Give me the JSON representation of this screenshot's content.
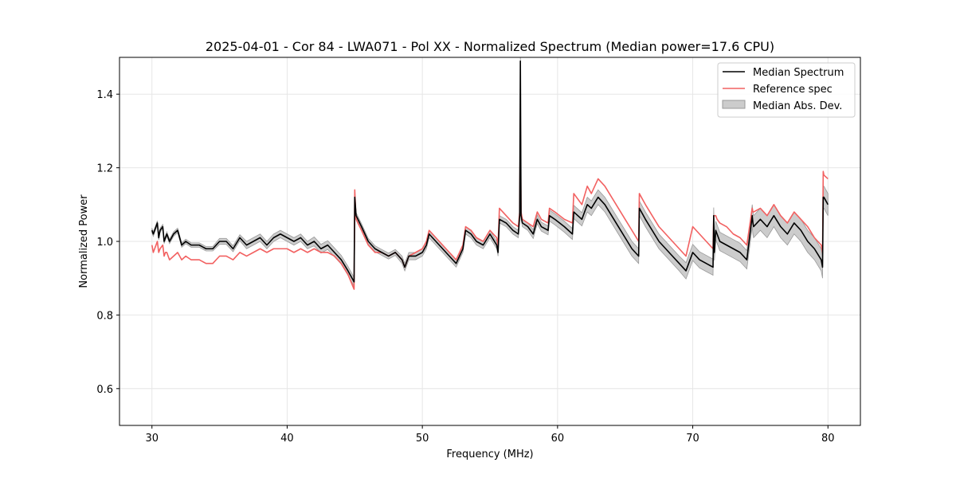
{
  "chart_data": {
    "type": "line",
    "title": "2025-04-01 - Cor 84 - LWA071 - Pol XX - Normalized Spectrum (Median power=17.6 CPU)",
    "xlabel": "Frequency (MHz)",
    "ylabel": "Normalized Power",
    "xlim": [
      27.6,
      82.4
    ],
    "ylim": [
      0.5,
      1.5
    ],
    "xticks": [
      30,
      40,
      50,
      60,
      70,
      80
    ],
    "yticks": [
      0.6,
      0.8,
      1.0,
      1.2,
      1.4
    ],
    "grid": true,
    "legend_position": "top-right",
    "colors": {
      "median": "#000000",
      "reference": "#f26161",
      "mad_fill": "#cccccc",
      "mad_edge": "#999999"
    },
    "series": [
      {
        "name": "Median Spectrum",
        "x": [
          30.0,
          30.1,
          30.3,
          30.4,
          30.5,
          30.6,
          30.8,
          30.9,
          31.0,
          31.1,
          31.3,
          31.6,
          31.9,
          32.2,
          32.5,
          32.9,
          33.1,
          33.5,
          34.0,
          34.5,
          35.0,
          35.5,
          36.0,
          36.5,
          37.0,
          37.5,
          38.0,
          38.5,
          39.0,
          39.5,
          40.0,
          40.5,
          41.0,
          41.5,
          42.0,
          42.5,
          43.0,
          43.5,
          44.0,
          44.5,
          44.95,
          45.0,
          45.1,
          45.5,
          46.0,
          46.5,
          47.0,
          47.5,
          48.0,
          48.5,
          48.7,
          49.0,
          49.5,
          50.0,
          50.3,
          50.5,
          51.0,
          51.5,
          52.0,
          52.5,
          53.0,
          53.2,
          53.6,
          54.0,
          54.5,
          55.0,
          55.5,
          55.6,
          55.7,
          56.2,
          56.7,
          57.1,
          57.2,
          57.25,
          57.3,
          57.4,
          57.8,
          58.2,
          58.5,
          58.8,
          59.3,
          59.4,
          59.8,
          60.5,
          61.1,
          61.2,
          61.8,
          62.2,
          62.5,
          63.0,
          63.5,
          64.0,
          64.5,
          65.0,
          65.5,
          66.0,
          66.05,
          66.5,
          67.0,
          67.5,
          68.0,
          68.5,
          69.0,
          69.5,
          70.0,
          70.5,
          71.0,
          71.5,
          71.55,
          71.6,
          71.7,
          71.8,
          72.0,
          72.5,
          73.0,
          73.5,
          74.0,
          74.4,
          74.45,
          74.5,
          75.0,
          75.5,
          76.0,
          76.5,
          77.0,
          77.5,
          78.0,
          78.5,
          79.0,
          79.5,
          79.6,
          79.65,
          79.7,
          80.0
        ],
        "values": [
          1.03,
          1.02,
          1.04,
          1.05,
          1.01,
          1.03,
          1.04,
          1.0,
          1.01,
          1.02,
          1.0,
          1.02,
          1.03,
          0.99,
          1.0,
          0.99,
          0.99,
          0.99,
          0.98,
          0.98,
          1.0,
          1.0,
          0.98,
          1.01,
          0.99,
          1.0,
          1.01,
          0.99,
          1.01,
          1.02,
          1.01,
          1.0,
          1.01,
          0.99,
          1.0,
          0.98,
          0.99,
          0.97,
          0.95,
          0.92,
          0.89,
          1.12,
          1.07,
          1.04,
          1.0,
          0.98,
          0.97,
          0.96,
          0.97,
          0.95,
          0.93,
          0.96,
          0.96,
          0.97,
          0.99,
          1.02,
          1.0,
          0.98,
          0.96,
          0.94,
          0.98,
          1.03,
          1.02,
          1.0,
          0.99,
          1.02,
          0.99,
          0.97,
          1.06,
          1.05,
          1.03,
          1.02,
          1.07,
          1.49,
          1.07,
          1.05,
          1.04,
          1.02,
          1.06,
          1.04,
          1.03,
          1.07,
          1.06,
          1.04,
          1.02,
          1.08,
          1.06,
          1.1,
          1.09,
          1.12,
          1.1,
          1.07,
          1.04,
          1.01,
          0.98,
          0.96,
          1.09,
          1.06,
          1.03,
          1.0,
          0.98,
          0.96,
          0.94,
          0.92,
          0.97,
          0.95,
          0.94,
          0.93,
          1.07,
          0.97,
          1.03,
          1.02,
          1.0,
          0.99,
          0.98,
          0.97,
          0.95,
          1.07,
          1.05,
          1.04,
          1.06,
          1.04,
          1.07,
          1.04,
          1.02,
          1.05,
          1.03,
          1.0,
          0.98,
          0.95,
          0.93,
          1.12,
          1.12,
          1.1
        ]
      },
      {
        "name": "Reference spec",
        "x": [
          30.0,
          30.1,
          30.3,
          30.4,
          30.5,
          30.6,
          30.8,
          30.9,
          31.0,
          31.1,
          31.3,
          31.6,
          31.9,
          32.2,
          32.5,
          32.9,
          33.1,
          33.5,
          34.0,
          34.5,
          35.0,
          35.5,
          36.0,
          36.5,
          37.0,
          37.5,
          38.0,
          38.5,
          39.0,
          39.5,
          40.0,
          40.5,
          41.0,
          41.5,
          42.0,
          42.5,
          43.0,
          43.5,
          44.0,
          44.5,
          44.95,
          45.0,
          45.1,
          45.5,
          46.0,
          46.5,
          47.0,
          47.5,
          48.0,
          48.5,
          48.7,
          49.0,
          49.5,
          50.0,
          50.3,
          50.5,
          51.0,
          51.5,
          52.0,
          52.5,
          53.0,
          53.2,
          53.6,
          54.0,
          54.5,
          55.0,
          55.5,
          55.6,
          55.7,
          56.2,
          56.7,
          57.1,
          57.2,
          57.25,
          57.3,
          57.4,
          57.8,
          58.2,
          58.5,
          58.8,
          59.3,
          59.4,
          59.8,
          60.5,
          61.1,
          61.2,
          61.8,
          62.2,
          62.5,
          63.0,
          63.5,
          64.0,
          64.5,
          65.0,
          65.5,
          66.0,
          66.05,
          66.5,
          67.0,
          67.5,
          68.0,
          68.5,
          69.0,
          69.5,
          70.0,
          70.5,
          71.0,
          71.5,
          71.55,
          71.6,
          71.7,
          71.8,
          72.0,
          72.5,
          73.0,
          73.5,
          74.0,
          74.4,
          74.45,
          74.5,
          75.0,
          75.5,
          76.0,
          76.5,
          77.0,
          77.5,
          78.0,
          78.5,
          79.0,
          79.5,
          79.6,
          79.65,
          79.7,
          80.0
        ],
        "values": [
          0.99,
          0.97,
          0.99,
          1.0,
          0.97,
          0.98,
          0.99,
          0.96,
          0.97,
          0.97,
          0.95,
          0.96,
          0.97,
          0.95,
          0.96,
          0.95,
          0.95,
          0.95,
          0.94,
          0.94,
          0.96,
          0.96,
          0.95,
          0.97,
          0.96,
          0.97,
          0.98,
          0.97,
          0.98,
          0.98,
          0.98,
          0.97,
          0.98,
          0.97,
          0.98,
          0.97,
          0.97,
          0.96,
          0.94,
          0.91,
          0.87,
          1.14,
          1.06,
          1.03,
          0.99,
          0.97,
          0.97,
          0.96,
          0.97,
          0.95,
          0.93,
          0.96,
          0.97,
          0.98,
          1.0,
          1.03,
          1.01,
          0.99,
          0.97,
          0.95,
          0.99,
          1.04,
          1.03,
          1.01,
          1.0,
          1.03,
          1.01,
          0.99,
          1.09,
          1.07,
          1.05,
          1.04,
          1.08,
          1.33,
          1.08,
          1.06,
          1.05,
          1.04,
          1.08,
          1.06,
          1.05,
          1.09,
          1.08,
          1.06,
          1.05,
          1.13,
          1.1,
          1.15,
          1.13,
          1.17,
          1.15,
          1.12,
          1.09,
          1.06,
          1.03,
          1.0,
          1.13,
          1.1,
          1.07,
          1.04,
          1.02,
          1.0,
          0.98,
          0.96,
          1.04,
          1.02,
          1.0,
          0.98,
          1.07,
          1.07,
          1.07,
          1.06,
          1.05,
          1.04,
          1.02,
          1.01,
          0.99,
          1.09,
          1.08,
          1.08,
          1.09,
          1.07,
          1.1,
          1.07,
          1.05,
          1.08,
          1.06,
          1.04,
          1.01,
          0.99,
          0.97,
          1.19,
          1.18,
          1.17
        ]
      }
    ],
    "mad_band": {
      "name": "Median Abs. Dev.",
      "x": [
        30.0,
        30.1,
        30.3,
        30.4,
        30.5,
        30.6,
        30.8,
        30.9,
        31.0,
        31.1,
        31.3,
        31.6,
        31.9,
        32.2,
        32.5,
        32.9,
        33.1,
        33.5,
        34.0,
        34.5,
        35.0,
        35.5,
        36.0,
        36.5,
        37.0,
        37.5,
        38.0,
        38.5,
        39.0,
        39.5,
        40.0,
        40.5,
        41.0,
        41.5,
        42.0,
        42.5,
        43.0,
        43.5,
        44.0,
        44.5,
        44.95,
        45.0,
        45.1,
        45.5,
        46.0,
        46.5,
        47.0,
        47.5,
        48.0,
        48.5,
        48.7,
        49.0,
        49.5,
        50.0,
        50.3,
        50.5,
        51.0,
        51.5,
        52.0,
        52.5,
        53.0,
        53.2,
        53.6,
        54.0,
        54.5,
        55.0,
        55.5,
        55.6,
        55.7,
        56.2,
        56.7,
        57.1,
        57.2,
        57.25,
        57.3,
        57.4,
        57.8,
        58.2,
        58.5,
        58.8,
        59.3,
        59.4,
        59.8,
        60.5,
        61.1,
        61.2,
        61.8,
        62.2,
        62.5,
        63.0,
        63.5,
        64.0,
        64.5,
        65.0,
        65.5,
        66.0,
        66.05,
        66.5,
        67.0,
        67.5,
        68.0,
        68.5,
        69.0,
        69.5,
        70.0,
        70.5,
        71.0,
        71.5,
        71.55,
        71.6,
        71.7,
        71.8,
        72.0,
        72.5,
        73.0,
        73.5,
        74.0,
        74.4,
        74.45,
        74.5,
        75.0,
        75.5,
        76.0,
        76.5,
        77.0,
        77.5,
        78.0,
        78.5,
        79.0,
        79.5,
        79.6,
        79.65,
        79.7,
        80.0
      ],
      "halfwidth": [
        0.006,
        0.006,
        0.006,
        0.006,
        0.006,
        0.006,
        0.006,
        0.006,
        0.006,
        0.006,
        0.006,
        0.006,
        0.006,
        0.006,
        0.006,
        0.006,
        0.006,
        0.006,
        0.006,
        0.006,
        0.008,
        0.008,
        0.008,
        0.008,
        0.01,
        0.01,
        0.01,
        0.01,
        0.01,
        0.01,
        0.01,
        0.01,
        0.01,
        0.01,
        0.012,
        0.012,
        0.012,
        0.012,
        0.012,
        0.012,
        0.012,
        0.012,
        0.008,
        0.008,
        0.008,
        0.008,
        0.008,
        0.008,
        0.008,
        0.01,
        0.01,
        0.01,
        0.01,
        0.01,
        0.01,
        0.01,
        0.01,
        0.01,
        0.01,
        0.01,
        0.01,
        0.01,
        0.01,
        0.01,
        0.01,
        0.01,
        0.01,
        0.01,
        0.01,
        0.01,
        0.01,
        0.01,
        0.01,
        0.01,
        0.01,
        0.01,
        0.01,
        0.012,
        0.012,
        0.012,
        0.012,
        0.015,
        0.015,
        0.015,
        0.015,
        0.018,
        0.018,
        0.02,
        0.02,
        0.02,
        0.02,
        0.02,
        0.02,
        0.02,
        0.02,
        0.02,
        0.02,
        0.02,
        0.02,
        0.02,
        0.02,
        0.02,
        0.02,
        0.022,
        0.022,
        0.022,
        0.022,
        0.022,
        0.022,
        0.022,
        0.025,
        0.025,
        0.025,
        0.025,
        0.025,
        0.025,
        0.025,
        0.03,
        0.03,
        0.03,
        0.03,
        0.03,
        0.03,
        0.03,
        0.03,
        0.03,
        0.03,
        0.03,
        0.03,
        0.03,
        0.03,
        0.03,
        0.03,
        0.03
      ]
    }
  }
}
